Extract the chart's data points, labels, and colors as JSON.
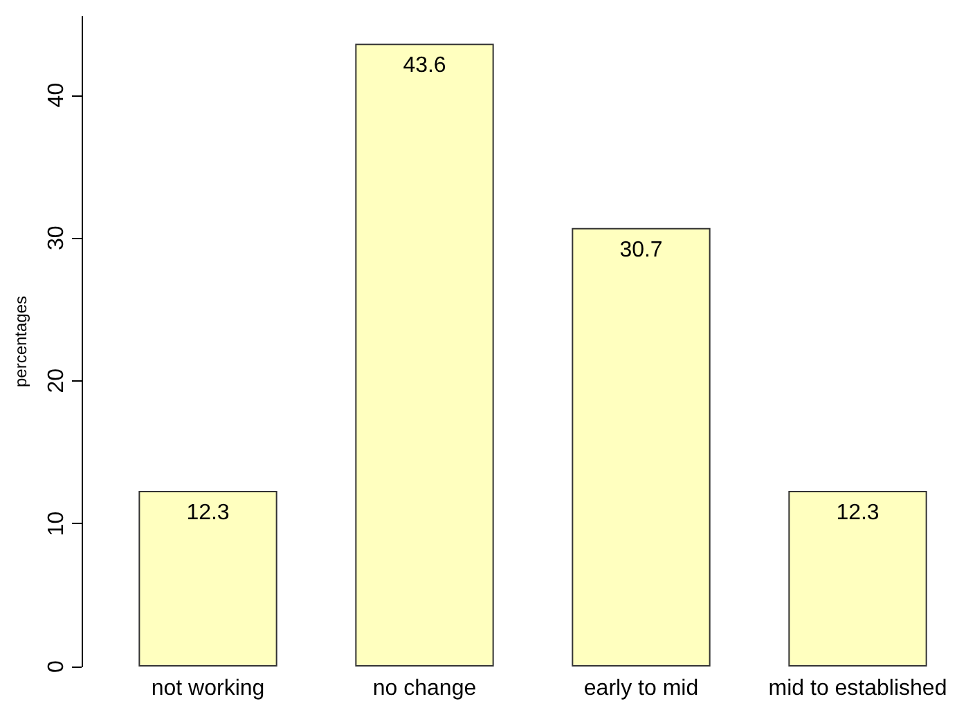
{
  "chart_data": {
    "type": "bar",
    "ylabel": "percentages",
    "categories": [
      "not working",
      "no change",
      "early to mid",
      "mid to established"
    ],
    "values": [
      12.3,
      43.6,
      30.7,
      12.3
    ],
    "color": "#ffffbf",
    "ylim": [
      0,
      45.5
    ],
    "yticks": [
      0,
      10,
      20,
      30,
      40
    ],
    "data_labels": true,
    "grid": false
  }
}
